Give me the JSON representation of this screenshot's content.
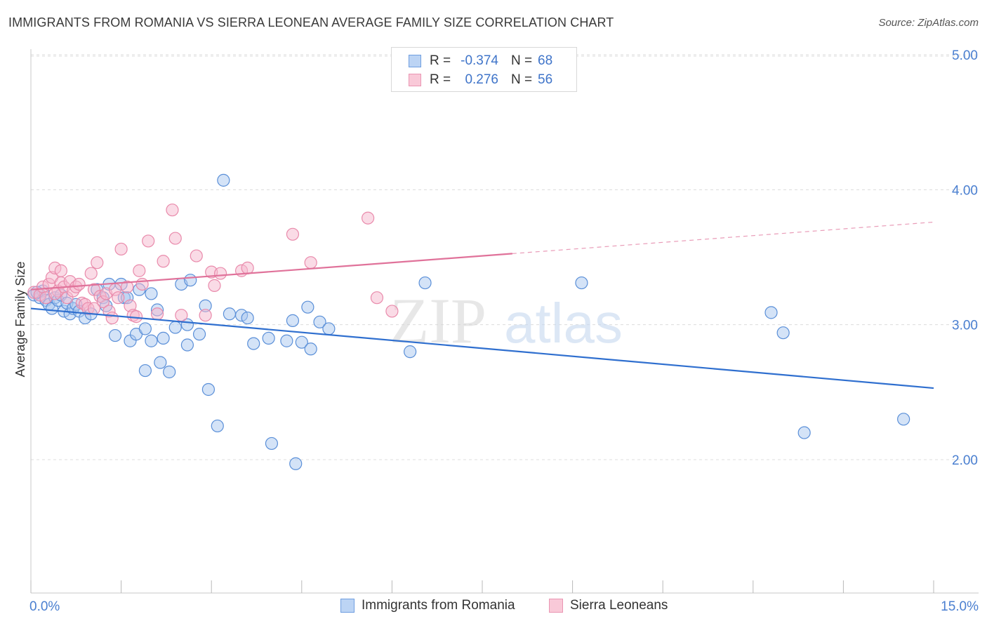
{
  "header": {
    "title": "IMMIGRANTS FROM ROMANIA VS SIERRA LEONEAN AVERAGE FAMILY SIZE CORRELATION CHART",
    "source": "Source: ZipAtlas.com"
  },
  "legend": {
    "rows": [
      {
        "r_label": "R =",
        "r_value": "-0.374",
        "n_label": "N =",
        "n_value": "68"
      },
      {
        "r_label": "R =",
        "r_value": "0.276",
        "n_label": "N =",
        "n_value": "56"
      }
    ]
  },
  "watermark": {
    "zip": "ZIP",
    "atlas": "atlas"
  },
  "colors": {
    "blue_fill": "#a9c8f0",
    "blue_stroke": "#5a8fd8",
    "blue_line": "#2f6fcf",
    "pink_fill": "#f6b8cd",
    "pink_stroke": "#e98aab",
    "pink_line": "#e0729a",
    "tick_text": "#4a7fd0",
    "grid": "#dcdcdc"
  },
  "chart_data": {
    "type": "scatter",
    "title": "IMMIGRANTS FROM ROMANIA VS SIERRA LEONEAN AVERAGE FAMILY SIZE CORRELATION CHART",
    "xlabel": "",
    "ylabel": "Average Family Size",
    "xlim": [
      0,
      15
    ],
    "ylim": [
      1.0,
      5.15
    ],
    "x_tick_labels": [
      "0.0%",
      "15.0%"
    ],
    "y_ticks": [
      2.0,
      3.0,
      4.0,
      5.0
    ],
    "y_tick_labels": [
      "2.00",
      "3.00",
      "4.00",
      "5.00"
    ],
    "grid": true,
    "legend_placement": "bottom-center",
    "series": [
      {
        "name": "Immigrants from Romania",
        "color": "blue",
        "r": -0.374,
        "n": 68,
        "trendline": {
          "x": [
            0.0,
            15.0
          ],
          "y": [
            3.12,
            2.53
          ],
          "dashed_from_x": null
        },
        "points": [
          [
            0.05,
            3.22
          ],
          [
            0.15,
            3.2
          ],
          [
            0.2,
            3.25
          ],
          [
            0.25,
            3.18
          ],
          [
            0.3,
            3.15
          ],
          [
            0.35,
            3.12
          ],
          [
            0.4,
            3.2
          ],
          [
            0.45,
            3.18
          ],
          [
            0.5,
            3.22
          ],
          [
            0.55,
            3.1
          ],
          [
            0.6,
            3.16
          ],
          [
            0.65,
            3.08
          ],
          [
            0.7,
            3.12
          ],
          [
            0.75,
            3.15
          ],
          [
            0.8,
            3.1
          ],
          [
            0.9,
            3.05
          ],
          [
            1.0,
            3.08
          ],
          [
            1.1,
            3.26
          ],
          [
            1.2,
            3.2
          ],
          [
            1.25,
            3.14
          ],
          [
            1.3,
            3.3
          ],
          [
            1.4,
            2.92
          ],
          [
            1.5,
            3.3
          ],
          [
            1.55,
            3.2
          ],
          [
            1.6,
            3.2
          ],
          [
            1.65,
            2.88
          ],
          [
            1.75,
            2.93
          ],
          [
            1.8,
            3.26
          ],
          [
            1.9,
            2.66
          ],
          [
            1.9,
            2.97
          ],
          [
            2.0,
            2.88
          ],
          [
            2.0,
            3.23
          ],
          [
            2.1,
            3.11
          ],
          [
            2.15,
            2.72
          ],
          [
            2.2,
            2.9
          ],
          [
            2.3,
            2.65
          ],
          [
            2.4,
            2.98
          ],
          [
            2.5,
            3.3
          ],
          [
            2.6,
            3.0
          ],
          [
            2.6,
            2.85
          ],
          [
            2.65,
            3.33
          ],
          [
            2.8,
            2.93
          ],
          [
            2.9,
            3.14
          ],
          [
            2.95,
            2.52
          ],
          [
            3.1,
            2.25
          ],
          [
            3.2,
            4.07
          ],
          [
            3.3,
            3.08
          ],
          [
            3.5,
            3.07
          ],
          [
            3.6,
            3.05
          ],
          [
            3.7,
            2.86
          ],
          [
            3.95,
            2.9
          ],
          [
            4.0,
            2.12
          ],
          [
            4.25,
            2.88
          ],
          [
            4.35,
            3.03
          ],
          [
            4.4,
            1.97
          ],
          [
            4.5,
            2.87
          ],
          [
            4.6,
            3.13
          ],
          [
            4.65,
            2.82
          ],
          [
            4.8,
            3.02
          ],
          [
            4.95,
            2.97
          ],
          [
            6.3,
            2.8
          ],
          [
            6.55,
            3.31
          ],
          [
            9.15,
            3.31
          ],
          [
            12.3,
            3.09
          ],
          [
            12.5,
            2.94
          ],
          [
            12.85,
            2.2
          ],
          [
            14.5,
            2.3
          ],
          [
            0.1,
            3.24
          ]
        ]
      },
      {
        "name": "Sierra Leoneans",
        "color": "pink",
        "r": 0.276,
        "n": 56,
        "trendline": {
          "x": [
            0.0,
            15.0
          ],
          "y": [
            3.26,
            3.76
          ],
          "dashed_from_x": 8.0
        },
        "points": [
          [
            0.05,
            3.24
          ],
          [
            0.15,
            3.22
          ],
          [
            0.2,
            3.28
          ],
          [
            0.25,
            3.2
          ],
          [
            0.3,
            3.3
          ],
          [
            0.35,
            3.35
          ],
          [
            0.4,
            3.42
          ],
          [
            0.45,
            3.25
          ],
          [
            0.5,
            3.31
          ],
          [
            0.5,
            3.4
          ],
          [
            0.55,
            3.28
          ],
          [
            0.6,
            3.2
          ],
          [
            0.65,
            3.32
          ],
          [
            0.7,
            3.25
          ],
          [
            0.75,
            3.28
          ],
          [
            0.8,
            3.3
          ],
          [
            0.85,
            3.16
          ],
          [
            0.9,
            3.15
          ],
          [
            0.95,
            3.12
          ],
          [
            1.0,
            3.38
          ],
          [
            1.05,
            3.26
          ],
          [
            1.1,
            3.46
          ],
          [
            1.15,
            3.21
          ],
          [
            1.2,
            3.17
          ],
          [
            1.25,
            3.23
          ],
          [
            1.3,
            3.1
          ],
          [
            1.35,
            3.05
          ],
          [
            1.4,
            3.26
          ],
          [
            1.45,
            3.2
          ],
          [
            1.5,
            3.56
          ],
          [
            1.6,
            3.28
          ],
          [
            1.65,
            3.14
          ],
          [
            1.7,
            3.07
          ],
          [
            1.75,
            3.06
          ],
          [
            1.8,
            3.4
          ],
          [
            1.85,
            3.3
          ],
          [
            1.95,
            3.62
          ],
          [
            2.1,
            3.08
          ],
          [
            2.2,
            3.47
          ],
          [
            2.35,
            3.85
          ],
          [
            2.4,
            3.64
          ],
          [
            2.5,
            3.07
          ],
          [
            2.75,
            3.51
          ],
          [
            2.9,
            3.07
          ],
          [
            3.0,
            3.39
          ],
          [
            3.05,
            3.29
          ],
          [
            3.15,
            3.38
          ],
          [
            3.5,
            3.4
          ],
          [
            3.6,
            3.42
          ],
          [
            4.35,
            3.67
          ],
          [
            4.65,
            3.46
          ],
          [
            5.6,
            3.79
          ],
          [
            5.75,
            3.2
          ],
          [
            6.0,
            3.1
          ],
          [
            0.4,
            3.23
          ],
          [
            1.05,
            3.12
          ]
        ]
      }
    ]
  },
  "bottom_legend": {
    "items": [
      {
        "label": "Immigrants from Romania"
      },
      {
        "label": "Sierra Leoneans"
      }
    ]
  }
}
